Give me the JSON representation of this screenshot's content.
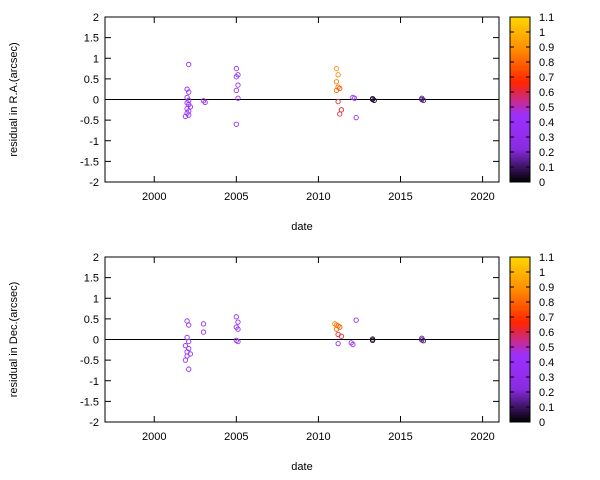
{
  "chart_data": [
    {
      "type": "scatter",
      "xlabel": "date",
      "ylabel": "residual in R.A.(arcsec)",
      "xlim": [
        1997,
        2021
      ],
      "ylim": [
        -2,
        2
      ],
      "x_ticks": [
        2000,
        2005,
        2010,
        2015,
        2020
      ],
      "y_ticks": [
        -2,
        -1.5,
        -1,
        -0.5,
        0,
        0.5,
        1,
        1.5,
        2
      ],
      "zero_line": true,
      "marker": "open-circle",
      "colorbar": {
        "range": [
          0,
          1.1
        ],
        "ticks": [
          0,
          0.1,
          0.2,
          0.3,
          0.4,
          0.5,
          0.6,
          0.7,
          0.8,
          0.9,
          1,
          1.1
        ],
        "palette": [
          "#000000",
          "#8a2be2",
          "#9b30ff",
          "#ff2400",
          "#ff8c00",
          "#ffd700"
        ]
      },
      "points": [
        {
          "x": 2002.0,
          "y": 0.25,
          "c": 0.38
        },
        {
          "x": 2002.1,
          "y": 0.85,
          "c": 0.38
        },
        {
          "x": 2002.1,
          "y": 0.18,
          "c": 0.38
        },
        {
          "x": 2002.0,
          "y": 0.05,
          "c": 0.38
        },
        {
          "x": 2002.1,
          "y": -0.02,
          "c": 0.38
        },
        {
          "x": 2002.0,
          "y": -0.08,
          "c": 0.38
        },
        {
          "x": 2002.1,
          "y": -0.12,
          "c": 0.38
        },
        {
          "x": 2002.2,
          "y": -0.18,
          "c": 0.38
        },
        {
          "x": 2002.0,
          "y": -0.22,
          "c": 0.38
        },
        {
          "x": 2002.1,
          "y": -0.28,
          "c": 0.38
        },
        {
          "x": 2002.0,
          "y": -0.33,
          "c": 0.38
        },
        {
          "x": 2002.1,
          "y": -0.38,
          "c": 0.38
        },
        {
          "x": 2001.9,
          "y": -0.41,
          "c": 0.38
        },
        {
          "x": 2003.0,
          "y": -0.03,
          "c": 0.38
        },
        {
          "x": 2003.1,
          "y": -0.07,
          "c": 0.38
        },
        {
          "x": 2005.0,
          "y": 0.75,
          "c": 0.38
        },
        {
          "x": 2005.1,
          "y": 0.6,
          "c": 0.38
        },
        {
          "x": 2005.0,
          "y": 0.55,
          "c": 0.38
        },
        {
          "x": 2005.1,
          "y": 0.35,
          "c": 0.38
        },
        {
          "x": 2005.0,
          "y": 0.22,
          "c": 0.38
        },
        {
          "x": 2005.1,
          "y": 0.03,
          "c": 0.38
        },
        {
          "x": 2005.0,
          "y": -0.6,
          "c": 0.38
        },
        {
          "x": 2011.1,
          "y": 0.75,
          "c": 0.9
        },
        {
          "x": 2011.2,
          "y": 0.6,
          "c": 0.88
        },
        {
          "x": 2011.1,
          "y": 0.43,
          "c": 0.85
        },
        {
          "x": 2011.2,
          "y": 0.3,
          "c": 0.8
        },
        {
          "x": 2011.3,
          "y": 0.27,
          "c": 0.75
        },
        {
          "x": 2011.1,
          "y": 0.22,
          "c": 0.8
        },
        {
          "x": 2011.2,
          "y": -0.05,
          "c": 0.6
        },
        {
          "x": 2011.4,
          "y": -0.25,
          "c": 0.62
        },
        {
          "x": 2011.3,
          "y": -0.35,
          "c": 0.6
        },
        {
          "x": 2012.1,
          "y": 0.05,
          "c": 0.38
        },
        {
          "x": 2012.2,
          "y": 0.03,
          "c": 0.38
        },
        {
          "x": 2012.3,
          "y": -0.44,
          "c": 0.38
        },
        {
          "x": 2013.3,
          "y": 0.02,
          "c": 0.05
        },
        {
          "x": 2013.3,
          "y": 0.0,
          "c": 0.05
        },
        {
          "x": 2013.4,
          "y": -0.02,
          "c": 0.05
        },
        {
          "x": 2016.3,
          "y": 0.03,
          "c": 0.15
        },
        {
          "x": 2016.3,
          "y": 0.0,
          "c": 0.1
        },
        {
          "x": 2016.4,
          "y": -0.02,
          "c": 0.12
        }
      ]
    },
    {
      "type": "scatter",
      "xlabel": "date",
      "ylabel": "residual in Dec.(arcsec)",
      "xlim": [
        1997,
        2021
      ],
      "ylim": [
        -2,
        2
      ],
      "x_ticks": [
        2000,
        2005,
        2010,
        2015,
        2020
      ],
      "y_ticks": [
        -2,
        -1.5,
        -1,
        -0.5,
        0,
        0.5,
        1,
        1.5,
        2
      ],
      "zero_line": true,
      "marker": "open-circle",
      "colorbar": {
        "range": [
          0,
          1.1
        ],
        "ticks": [
          0,
          0.1,
          0.2,
          0.3,
          0.4,
          0.5,
          0.6,
          0.7,
          0.8,
          0.9,
          1,
          1.1
        ],
        "palette": [
          "#000000",
          "#8a2be2",
          "#9b30ff",
          "#ff2400",
          "#ff8c00",
          "#ffd700"
        ]
      },
      "points": [
        {
          "x": 2002.0,
          "y": 0.45,
          "c": 0.38
        },
        {
          "x": 2002.1,
          "y": 0.35,
          "c": 0.38
        },
        {
          "x": 2002.0,
          "y": 0.05,
          "c": 0.38
        },
        {
          "x": 2002.1,
          "y": -0.05,
          "c": 0.38
        },
        {
          "x": 2001.9,
          "y": -0.15,
          "c": 0.38
        },
        {
          "x": 2002.1,
          "y": -0.22,
          "c": 0.38
        },
        {
          "x": 2002.0,
          "y": -0.3,
          "c": 0.38
        },
        {
          "x": 2002.2,
          "y": -0.35,
          "c": 0.38
        },
        {
          "x": 2002.0,
          "y": -0.4,
          "c": 0.38
        },
        {
          "x": 2001.9,
          "y": -0.5,
          "c": 0.38
        },
        {
          "x": 2002.1,
          "y": -0.72,
          "c": 0.38
        },
        {
          "x": 2003.0,
          "y": 0.38,
          "c": 0.38
        },
        {
          "x": 2003.0,
          "y": 0.18,
          "c": 0.38
        },
        {
          "x": 2005.0,
          "y": 0.55,
          "c": 0.38
        },
        {
          "x": 2005.1,
          "y": 0.42,
          "c": 0.38
        },
        {
          "x": 2005.0,
          "y": 0.3,
          "c": 0.38
        },
        {
          "x": 2005.1,
          "y": 0.25,
          "c": 0.38
        },
        {
          "x": 2005.0,
          "y": -0.02,
          "c": 0.38
        },
        {
          "x": 2005.1,
          "y": -0.05,
          "c": 0.38
        },
        {
          "x": 2011.0,
          "y": 0.38,
          "c": 0.9
        },
        {
          "x": 2011.1,
          "y": 0.35,
          "c": 0.85
        },
        {
          "x": 2011.2,
          "y": 0.33,
          "c": 0.8
        },
        {
          "x": 2011.3,
          "y": 0.3,
          "c": 0.75
        },
        {
          "x": 2011.1,
          "y": 0.25,
          "c": 0.8
        },
        {
          "x": 2011.2,
          "y": 0.12,
          "c": 0.62
        },
        {
          "x": 2011.4,
          "y": 0.08,
          "c": 0.6
        },
        {
          "x": 2011.2,
          "y": -0.1,
          "c": 0.38
        },
        {
          "x": 2012.0,
          "y": -0.08,
          "c": 0.38
        },
        {
          "x": 2012.1,
          "y": -0.12,
          "c": 0.38
        },
        {
          "x": 2012.3,
          "y": 0.47,
          "c": 0.38
        },
        {
          "x": 2013.3,
          "y": 0.01,
          "c": 0.05
        },
        {
          "x": 2013.3,
          "y": -0.02,
          "c": 0.05
        },
        {
          "x": 2016.3,
          "y": 0.03,
          "c": 0.15
        },
        {
          "x": 2016.3,
          "y": -0.01,
          "c": 0.1
        },
        {
          "x": 2016.4,
          "y": -0.03,
          "c": 0.12
        }
      ]
    }
  ]
}
